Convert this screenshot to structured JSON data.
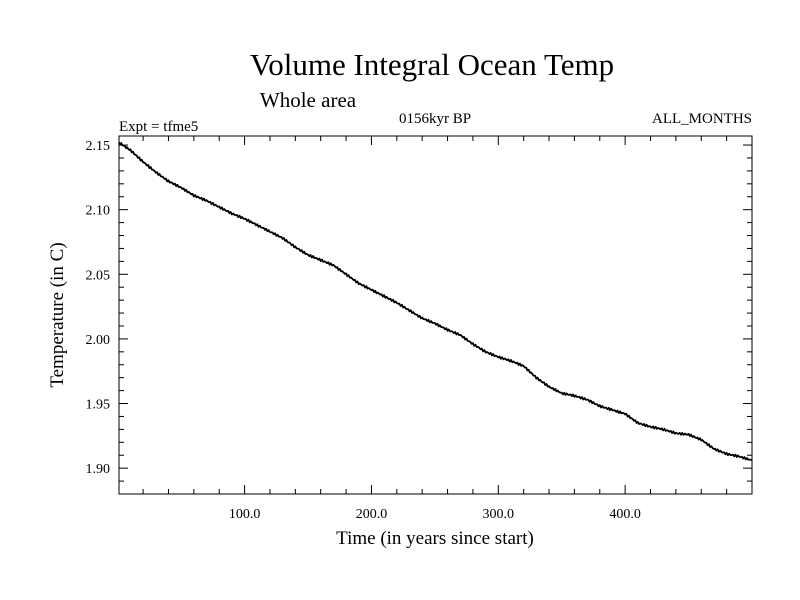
{
  "chart_data": {
    "type": "line",
    "title": "Volume Integral Ocean Temp",
    "subtitle": "Whole area",
    "experiment": "Expt = tfme5",
    "period": "0156kyr BP",
    "season": "ALL_MONTHS",
    "xlabel": "Time (in years since start)",
    "ylabel": "Temperature (in C)",
    "xlim": [
      1,
      500
    ],
    "ylim": [
      1.88,
      2.157
    ],
    "x_ticks": [
      100,
      200,
      300,
      400
    ],
    "x_tick_labels": [
      "100.0",
      "200.0",
      "300.0",
      "400.0"
    ],
    "y_ticks": [
      1.9,
      1.95,
      2.0,
      2.05,
      2.1,
      2.15
    ],
    "y_tick_labels": [
      "1.90",
      "1.95",
      "2.00",
      "2.05",
      "2.10",
      "2.15"
    ],
    "grid": false,
    "series": [
      {
        "color": "#000000",
        "x": [
          1,
          10,
          20,
          30,
          40,
          50,
          60,
          70,
          80,
          90,
          100,
          110,
          120,
          130,
          140,
          150,
          160,
          170,
          180,
          190,
          200,
          210,
          220,
          230,
          240,
          250,
          260,
          270,
          280,
          290,
          300,
          310,
          320,
          330,
          340,
          350,
          360,
          370,
          380,
          390,
          400,
          410,
          420,
          430,
          440,
          450,
          460,
          470,
          480,
          490,
          500
        ],
        "y": [
          2.152,
          2.146,
          2.137,
          2.129,
          2.122,
          2.117,
          2.111,
          2.107,
          2.102,
          2.097,
          2.093,
          2.088,
          2.083,
          2.078,
          2.071,
          2.065,
          2.061,
          2.057,
          2.05,
          2.043,
          2.038,
          2.033,
          2.028,
          2.022,
          2.016,
          2.012,
          2.007,
          2.003,
          1.996,
          1.99,
          1.986,
          1.983,
          1.979,
          1.97,
          1.963,
          1.958,
          1.956,
          1.953,
          1.948,
          1.945,
          1.942,
          1.935,
          1.932,
          1.93,
          1.927,
          1.926,
          1.922,
          1.915,
          1.911,
          1.909,
          1.906
        ]
      }
    ]
  }
}
